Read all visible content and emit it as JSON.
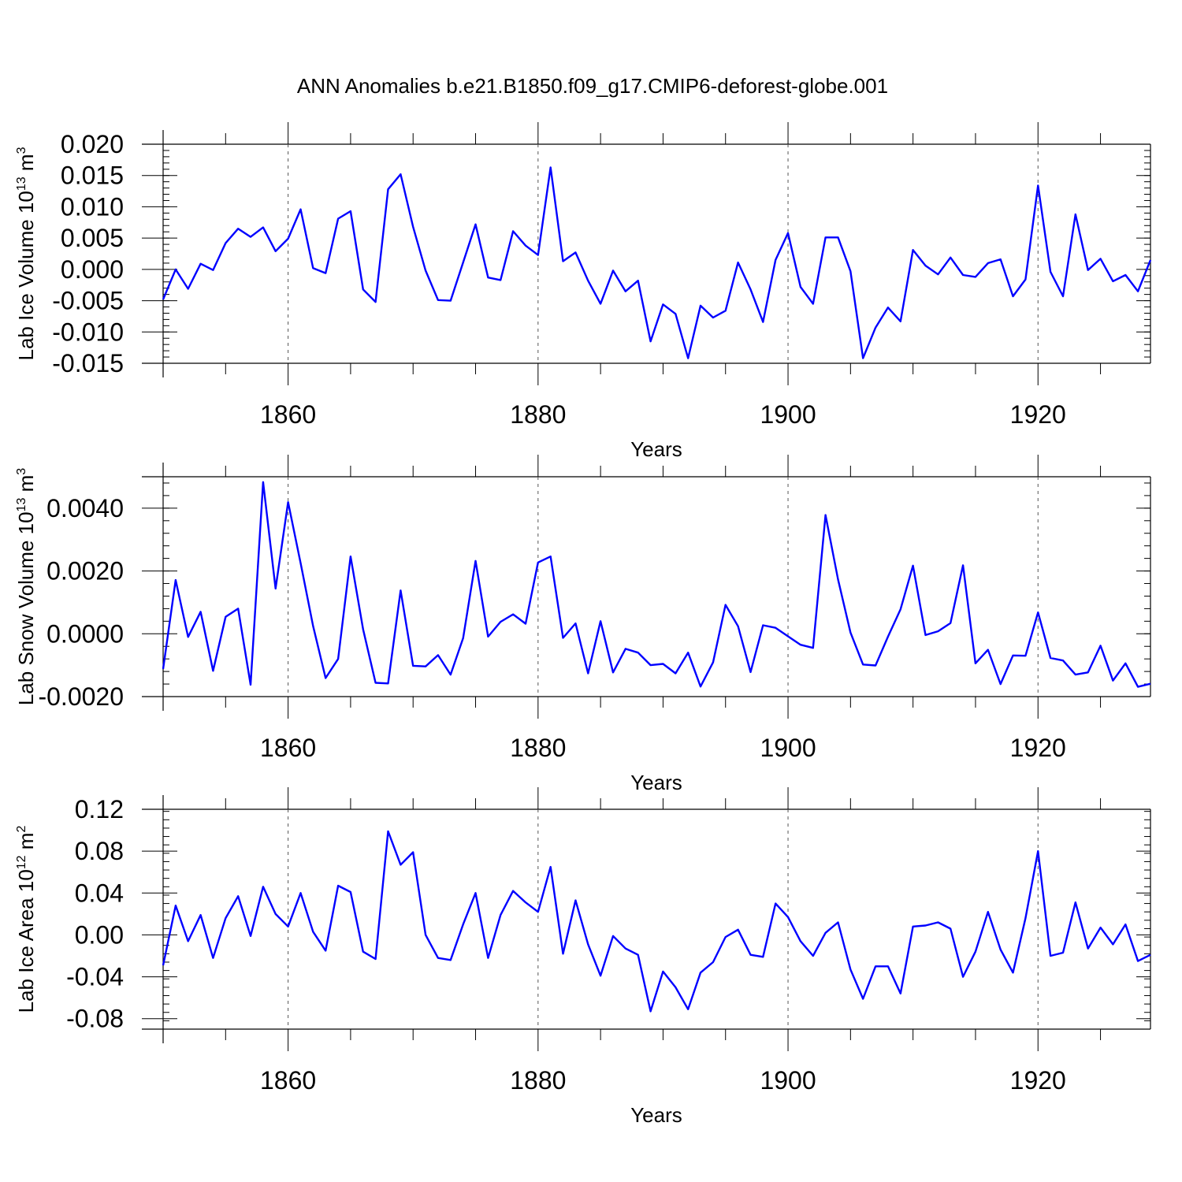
{
  "title": "ANN Anomalies b.e21.B1850.f09_g17.CMIP6-deforest-globe.001",
  "chart_data": [
    {
      "type": "line",
      "ylabel": "Lab Ice Volume 10",
      "ylabel_exp": "13",
      "ylabel_unit": " m",
      "ylabel_unit_exp": "3",
      "xlabel": "Years",
      "xlim": [
        1850,
        1929
      ],
      "ylim": [
        -0.015,
        0.02
      ],
      "yticks": [
        0.02,
        0.015,
        0.01,
        0.005,
        0.0,
        -0.005,
        -0.01,
        -0.015
      ],
      "ytick_labels": [
        "0.020",
        "0.015",
        "0.010",
        "0.005",
        "0.000",
        "-0.005",
        "-0.010",
        "-0.015"
      ],
      "xticks": [
        1860,
        1880,
        1900,
        1920
      ],
      "xtick_labels": [
        "1860",
        "1880",
        "1900",
        "1920"
      ],
      "grid": "x-dashed",
      "color": "#0000ff",
      "series": [
        {
          "name": "Lab Ice Volume",
          "x_start": 1850,
          "values": [
            -0.0048,
            0.0,
            -0.0031,
            0.0009,
            -0.0001,
            0.0042,
            0.0065,
            0.0052,
            0.0067,
            0.0029,
            0.0049,
            0.0096,
            0.0002,
            -0.0006,
            0.0081,
            0.0093,
            -0.0032,
            -0.0052,
            0.0128,
            0.0152,
            0.0068,
            -0.0002,
            -0.0049,
            -0.005,
            0.0011,
            0.0072,
            -0.0013,
            -0.0017,
            0.0061,
            0.0038,
            0.0023,
            0.0163,
            0.0013,
            0.0027,
            -0.0018,
            -0.0055,
            -0.0002,
            -0.0035,
            -0.0018,
            -0.0115,
            -0.0056,
            -0.0071,
            -0.0142,
            -0.0058,
            -0.0077,
            -0.0066,
            0.0011,
            -0.0032,
            -0.0084,
            0.0015,
            0.0058,
            -0.0028,
            -0.0055,
            0.0051,
            0.0051,
            -0.0003,
            -0.0142,
            -0.0093,
            -0.0061,
            -0.0083,
            0.0031,
            0.0006,
            -0.0008,
            0.0019,
            -0.0009,
            -0.0012,
            0.001,
            0.0016,
            -0.0043,
            -0.0016,
            0.0134,
            -0.0004,
            -0.0043,
            0.0088,
            -0.0001,
            0.0017,
            -0.0019,
            -0.0009,
            -0.0035,
            0.0015
          ]
        }
      ]
    },
    {
      "type": "line",
      "ylabel": "Lab Snow Volume 10",
      "ylabel_exp": "13",
      "ylabel_unit": " m",
      "ylabel_unit_exp": "3",
      "xlabel": "Years",
      "xlim": [
        1850,
        1929
      ],
      "ylim": [
        -0.002,
        0.005
      ],
      "yticks": [
        0.004,
        0.002,
        0.0,
        -0.002
      ],
      "ytick_labels": [
        "0.0040",
        "0.0020",
        "0.0000",
        "-0.0020"
      ],
      "xticks": [
        1860,
        1880,
        1900,
        1920
      ],
      "xtick_labels": [
        "1860",
        "1880",
        "1900",
        "1920"
      ],
      "grid": "x-dashed",
      "color": "#0000ff",
      "series": [
        {
          "name": "Lab Snow Volume",
          "x_start": 1850,
          "values": [
            -0.00112,
            0.00171,
            -0.0001,
            0.0007,
            -0.00118,
            0.00054,
            0.0008,
            -0.00162,
            0.00483,
            0.00144,
            0.00419,
            0.00225,
            0.00025,
            -0.00141,
            -0.0008,
            0.00246,
            0.00014,
            -0.00156,
            -0.00158,
            0.00138,
            -0.00102,
            -0.00104,
            -0.00068,
            -0.0013,
            -0.00014,
            0.00232,
            -9e-05,
            0.00038,
            0.00062,
            0.00032,
            0.00227,
            0.00246,
            -0.00013,
            0.00033,
            -0.00126,
            0.0004,
            -0.00123,
            -0.00048,
            -0.0006,
            -0.001,
            -0.00096,
            -0.00126,
            -0.0006,
            -0.00168,
            -0.00091,
            0.00092,
            0.00024,
            -0.00122,
            0.00027,
            0.00019,
            -8e-05,
            -0.00035,
            -0.00045,
            0.00378,
            0.00173,
            4e-05,
            -0.00098,
            -0.00101,
            -9e-05,
            0.00078,
            0.00217,
            -4e-05,
            8e-05,
            0.00034,
            0.00218,
            -0.00094,
            -0.00051,
            -0.0016,
            -0.00069,
            -0.0007,
            0.00068,
            -0.00077,
            -0.00085,
            -0.0013,
            -0.00123,
            -0.00038,
            -0.00149,
            -0.00094,
            -0.00169,
            -0.00159
          ]
        }
      ]
    },
    {
      "type": "line",
      "ylabel": "Lab Ice Area 10",
      "ylabel_exp": "12",
      "ylabel_unit": " m",
      "ylabel_unit_exp": "2",
      "xlabel": "Years",
      "xlim": [
        1850,
        1929
      ],
      "ylim": [
        -0.09,
        0.12
      ],
      "yticks": [
        0.12,
        0.08,
        0.04,
        0.0,
        -0.04,
        -0.08
      ],
      "ytick_labels": [
        "0.12",
        "0.08",
        "0.04",
        "0.00",
        "-0.04",
        "-0.08"
      ],
      "xticks": [
        1860,
        1880,
        1900,
        1920
      ],
      "xtick_labels": [
        "1860",
        "1880",
        "1900",
        "1920"
      ],
      "grid": "x-dashed",
      "color": "#0000ff",
      "series": [
        {
          "name": "Lab Ice Area",
          "x_start": 1850,
          "values": [
            -0.029,
            0.028,
            -0.006,
            0.019,
            -0.022,
            0.016,
            0.037,
            -0.001,
            0.046,
            0.02,
            0.008,
            0.04,
            0.003,
            -0.015,
            0.047,
            0.041,
            -0.016,
            -0.023,
            0.099,
            0.067,
            0.079,
            0.0,
            -0.022,
            -0.024,
            0.01,
            0.04,
            -0.022,
            0.019,
            0.042,
            0.031,
            0.022,
            0.065,
            -0.018,
            0.033,
            -0.009,
            -0.039,
            -0.001,
            -0.013,
            -0.019,
            -0.073,
            -0.035,
            -0.05,
            -0.071,
            -0.036,
            -0.026,
            -0.002,
            0.005,
            -0.019,
            -0.021,
            0.03,
            0.017,
            -0.006,
            -0.02,
            0.002,
            0.012,
            -0.033,
            -0.061,
            -0.03,
            -0.03,
            -0.056,
            0.008,
            0.009,
            0.012,
            0.006,
            -0.04,
            -0.016,
            0.022,
            -0.014,
            -0.036,
            0.016,
            0.08,
            -0.02,
            -0.017,
            0.031,
            -0.013,
            0.007,
            -0.009,
            0.01,
            -0.025,
            -0.019
          ]
        }
      ]
    }
  ]
}
